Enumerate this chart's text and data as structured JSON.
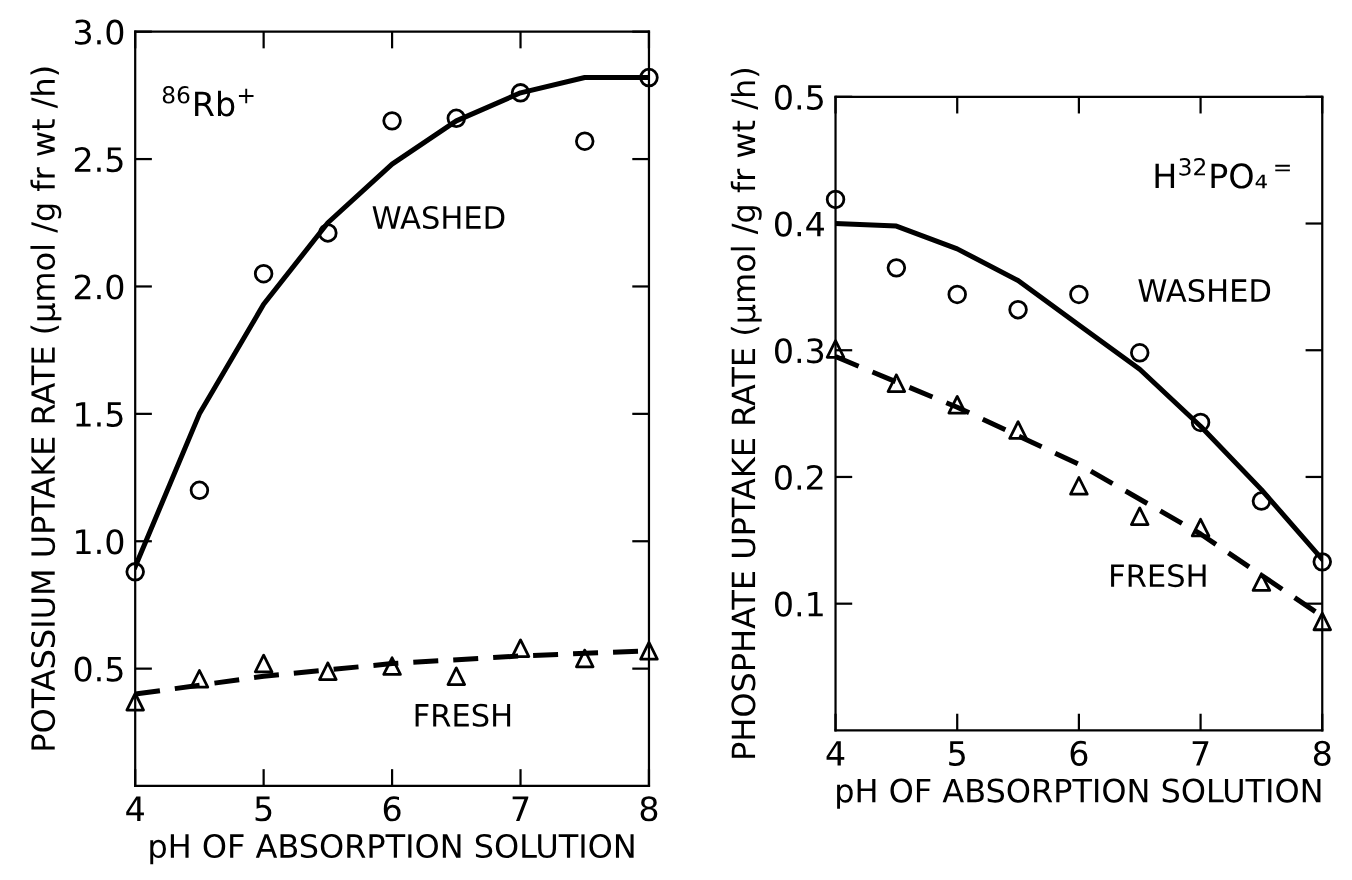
{
  "chart_data": [
    {
      "type": "scatter",
      "x": [
        4,
        4.5,
        5,
        5.5,
        6,
        6.5,
        7,
        7.5,
        8
      ],
      "xlabel": "pH OF ABSORPTION SOLUTION",
      "ylabel": "POTASSIUM UPTAKE RATE (μmol /g fr wt /h)",
      "xlim": [
        4,
        8
      ],
      "ylim": [
        0.04,
        3.0
      ],
      "xticks": [
        4,
        5,
        6,
        7,
        8
      ],
      "yticks": [
        0.5,
        {
          "value": 1,
          "label": "1.0"
        },
        1.5,
        {
          "value": 2,
          "label": "2.0"
        },
        2.5,
        {
          "value": 3,
          "label": "3.0"
        }
      ],
      "grid": false,
      "legend": false,
      "annotations": [
        "$^{86}$Rb$^{+}$"
      ],
      "series": [
        {
          "name": "WASHED",
          "color": "#000000",
          "marker": "circle",
          "values": [
            0.88,
            1.2,
            2.05,
            2.21,
            2.65,
            2.66,
            2.76,
            2.57,
            2.82
          ]
        },
        {
          "name": "FRESH",
          "color": "#000000",
          "marker": "triangle",
          "values": [
            0.37,
            0.46,
            0.52,
            0.49,
            0.51,
            0.47,
            0.58,
            0.54,
            0.57
          ]
        },
        {
          "type": "line",
          "color": "#000000",
          "line_style": "solid",
          "x": [
            4,
            4.5,
            5,
            5.5,
            6,
            6.5,
            7,
            7.5,
            8
          ],
          "values": [
            0.9,
            1.5,
            1.93,
            2.25,
            2.48,
            2.65,
            2.76,
            2.82,
            2.82
          ]
        },
        {
          "type": "line",
          "color": "#000000",
          "line_style": "dashed",
          "x": [
            4,
            5,
            6,
            7,
            8
          ],
          "values": [
            0.4,
            0.47,
            0.52,
            0.55,
            0.57
          ]
        }
      ]
    },
    {
      "type": "scatter",
      "x": [
        4,
        4.5,
        5,
        5.5,
        6,
        6.5,
        7,
        7.5,
        8
      ],
      "xlabel": "pH OF ABSORPTION SOLUTION",
      "ylabel": "PHOSPHATE UPTAKE RATE (μmol /g fr wt /h)",
      "xlim": [
        4,
        8
      ],
      "ylim": [
        0,
        0.5
      ],
      "xticks": [
        4,
        5,
        6,
        7,
        8
      ],
      "yticks": [
        0.1,
        0.2,
        0.3,
        0.4,
        0.5
      ],
      "grid": false,
      "legend": false,
      "annotations": [
        "H$^{32}$PO₄$^{=}$"
      ],
      "series": [
        {
          "name": "WASHED",
          "color": "#000000",
          "marker": "circle",
          "values": [
            0.419,
            0.365,
            0.344,
            0.332,
            0.344,
            0.298,
            0.243,
            0.181,
            0.133
          ]
        },
        {
          "name": "FRESH",
          "color": "#000000",
          "marker": "triangle",
          "values": [
            0.301,
            0.274,
            0.257,
            0.237,
            0.193,
            0.169,
            0.16,
            0.117,
            0.086
          ]
        },
        {
          "type": "line",
          "color": "#000000",
          "line_style": "solid",
          "x": [
            4,
            4.5,
            5,
            5.5,
            6,
            6.5,
            7,
            7.5,
            8
          ],
          "values": [
            0.4,
            0.398,
            0.38,
            0.355,
            0.32,
            0.285,
            0.24,
            0.19,
            0.135
          ]
        },
        {
          "type": "line",
          "color": "#000000",
          "line_style": "dashed",
          "x": [
            4,
            5,
            6,
            7,
            8
          ],
          "values": [
            0.295,
            0.255,
            0.21,
            0.155,
            0.09
          ]
        }
      ]
    }
  ]
}
